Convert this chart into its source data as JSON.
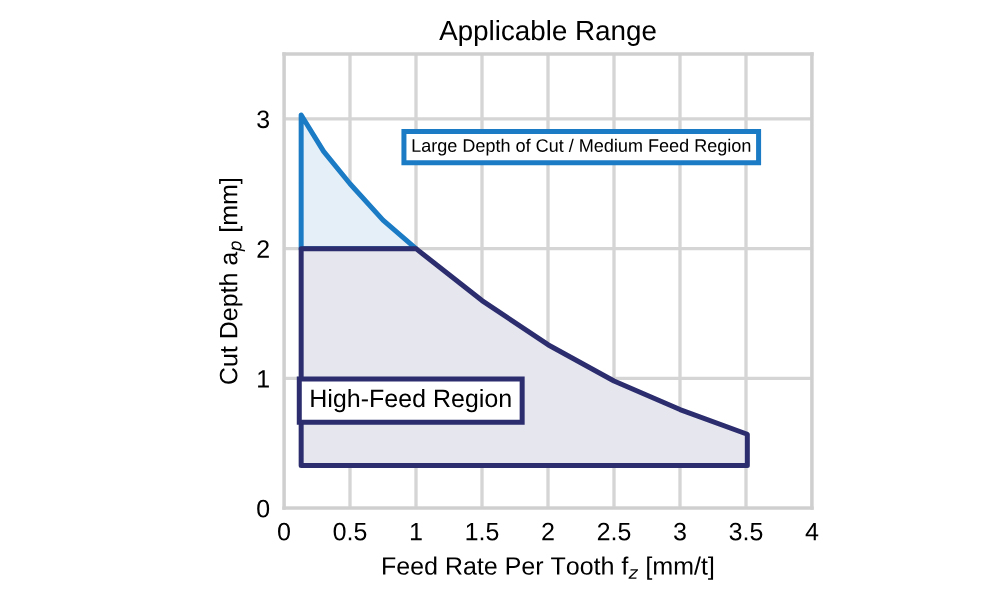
{
  "chart_data": {
    "type": "area",
    "title": "Applicable Range",
    "xlabel": "Feed Rate Per Tooth f$_{z}$ [mm/t]",
    "ylabel": "Cut Depth a$_{p}$ [mm]",
    "xlim": [
      0,
      4
    ],
    "ylim": [
      0,
      3.5
    ],
    "xticks": [
      0,
      0.5,
      1,
      1.5,
      2,
      2.5,
      3,
      3.5,
      4
    ],
    "yticks": [
      0,
      1,
      2,
      3
    ],
    "grid": true,
    "series": [
      {
        "color": "#1b7bc4",
        "x": [
          0.13,
          0.3,
          0.5,
          0.75,
          1.0,
          0.13,
          0.13
        ],
        "values": [
          3.03,
          2.75,
          2.5,
          2.22,
          2.0,
          2.0,
          3.03
        ]
      },
      {
        "color": "#2b2d6e",
        "x": [
          0.13,
          1.0,
          1.5,
          2.0,
          2.5,
          3.0,
          3.51,
          3.51,
          0.13,
          0.13
        ],
        "values": [
          2,
          2,
          1.6,
          1.26,
          0.98,
          0.76,
          0.57,
          0.33,
          0.33,
          2
        ]
      }
    ],
    "annotations": [
      "Large Depth of Cut / Medium Feed Region",
      "High-Feed Region"
    ]
  }
}
